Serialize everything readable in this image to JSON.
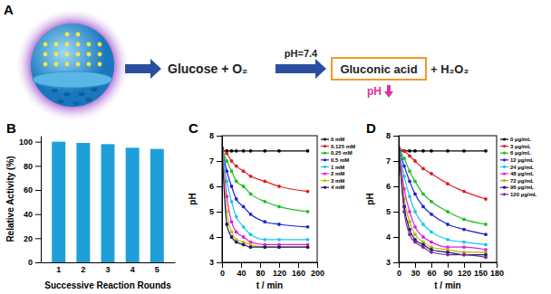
{
  "diagram": {
    "label": "A",
    "reactants": "Glucose + O₂",
    "condition": "pH=7.4",
    "product": "Gluconic acid",
    "byproduct": "+ H₂O₂",
    "effect": "pH"
  },
  "chart_data": [
    {
      "type": "bar",
      "title": "B",
      "xlabel": "Successive Reaction Rounds",
      "ylabel": "Relative Activity (%)",
      "categories": [
        "1",
        "2",
        "3",
        "4",
        "5"
      ],
      "values": [
        100,
        99,
        98,
        95,
        94
      ],
      "color": "#1f9fd8",
      "ylim": [
        0,
        105
      ],
      "yticks": [
        0,
        20,
        40,
        60,
        80,
        100
      ]
    },
    {
      "type": "line",
      "title": "C",
      "xlabel": "t / min",
      "ylabel": "pH",
      "marker": "circle",
      "legend": "right",
      "x": [
        0,
        10,
        20,
        30,
        45,
        60,
        90,
        120,
        180
      ],
      "xlim": [
        0,
        200
      ],
      "xticks": [
        0,
        40,
        80,
        120,
        160,
        200
      ],
      "ylim": [
        3,
        8
      ],
      "yticks": [
        3,
        4,
        5,
        6,
        7,
        8
      ],
      "series": [
        {
          "name": "0 mM",
          "color": "#000000",
          "values": [
            7.4,
            7.4,
            7.4,
            7.4,
            7.4,
            7.4,
            7.4,
            7.4,
            7.4
          ]
        },
        {
          "name": "0.125 mM",
          "color": "#e41a1c",
          "values": [
            7.5,
            7.3,
            7.0,
            6.8,
            6.6,
            6.4,
            6.2,
            6.0,
            5.8
          ]
        },
        {
          "name": "0.25 mM",
          "color": "#1fbf1f",
          "values": [
            7.5,
            7.0,
            6.6,
            6.2,
            6.0,
            5.7,
            5.4,
            5.2,
            5.0
          ]
        },
        {
          "name": "0.5 mM",
          "color": "#1f1fd8",
          "values": [
            7.5,
            6.6,
            6.0,
            5.5,
            5.2,
            4.9,
            4.6,
            4.5,
            4.4
          ]
        },
        {
          "name": "1 mM",
          "color": "#18c8e8",
          "values": [
            7.5,
            6.2,
            5.4,
            4.8,
            4.4,
            4.1,
            3.9,
            3.9,
            3.9
          ]
        },
        {
          "name": "2 mM",
          "color": "#e020e0",
          "values": [
            7.5,
            5.6,
            4.6,
            4.2,
            4.0,
            3.8,
            3.7,
            3.7,
            3.7
          ]
        },
        {
          "name": "3 mM",
          "color": "#c8c000",
          "values": [
            7.5,
            5.0,
            4.2,
            3.9,
            3.8,
            3.7,
            3.6,
            3.6,
            3.6
          ]
        },
        {
          "name": "4 mM",
          "color": "#1a1a70",
          "values": [
            7.5,
            4.5,
            4.0,
            3.8,
            3.7,
            3.6,
            3.6,
            3.6,
            3.6
          ]
        }
      ]
    },
    {
      "type": "line",
      "title": "D",
      "xlabel": "t / min",
      "ylabel": "pH",
      "marker": "circle",
      "legend": "right",
      "x": [
        0,
        10,
        20,
        30,
        45,
        60,
        90,
        120,
        160
      ],
      "xlim": [
        0,
        180
      ],
      "xticks": [
        0,
        30,
        60,
        90,
        120,
        150,
        180
      ],
      "ylim": [
        3,
        8
      ],
      "yticks": [
        3,
        4,
        5,
        6,
        7,
        8
      ],
      "series": [
        {
          "name": "0 µg/mL",
          "color": "#000000",
          "values": [
            7.4,
            7.4,
            7.4,
            7.4,
            7.4,
            7.4,
            7.4,
            7.4,
            7.4
          ]
        },
        {
          "name": "3 µg/mL",
          "color": "#e41a1c",
          "values": [
            7.5,
            7.4,
            7.2,
            7.0,
            6.7,
            6.5,
            6.1,
            5.8,
            5.5
          ]
        },
        {
          "name": "6 µg/mL",
          "color": "#1fbf1f",
          "values": [
            7.5,
            7.1,
            6.6,
            6.2,
            5.7,
            5.4,
            5.0,
            4.7,
            4.5
          ]
        },
        {
          "name": "12 µg/mL",
          "color": "#1f1fd8",
          "values": [
            7.5,
            6.8,
            6.2,
            5.7,
            5.2,
            4.9,
            4.5,
            4.3,
            4.1
          ]
        },
        {
          "name": "24 µg/mL",
          "color": "#18c8e8",
          "values": [
            7.5,
            6.4,
            5.6,
            5.0,
            4.5,
            4.2,
            3.9,
            3.8,
            3.7
          ]
        },
        {
          "name": "48 µg/mL",
          "color": "#e020e0",
          "values": [
            7.5,
            5.9,
            5.0,
            4.4,
            4.0,
            3.8,
            3.6,
            3.6,
            3.5
          ]
        },
        {
          "name": "72 µg/mL",
          "color": "#b8b000",
          "values": [
            7.5,
            5.5,
            4.6,
            4.1,
            3.8,
            3.6,
            3.5,
            3.4,
            3.4
          ]
        },
        {
          "name": "96 µg/mL",
          "color": "#1a1a70",
          "values": [
            7.5,
            5.2,
            4.3,
            3.9,
            3.7,
            3.5,
            3.4,
            3.3,
            3.3
          ]
        },
        {
          "name": "120 µg/mL",
          "color": "#7a2a9a",
          "values": [
            7.5,
            5.0,
            4.1,
            3.8,
            3.6,
            3.4,
            3.3,
            3.3,
            3.2
          ]
        }
      ]
    }
  ]
}
